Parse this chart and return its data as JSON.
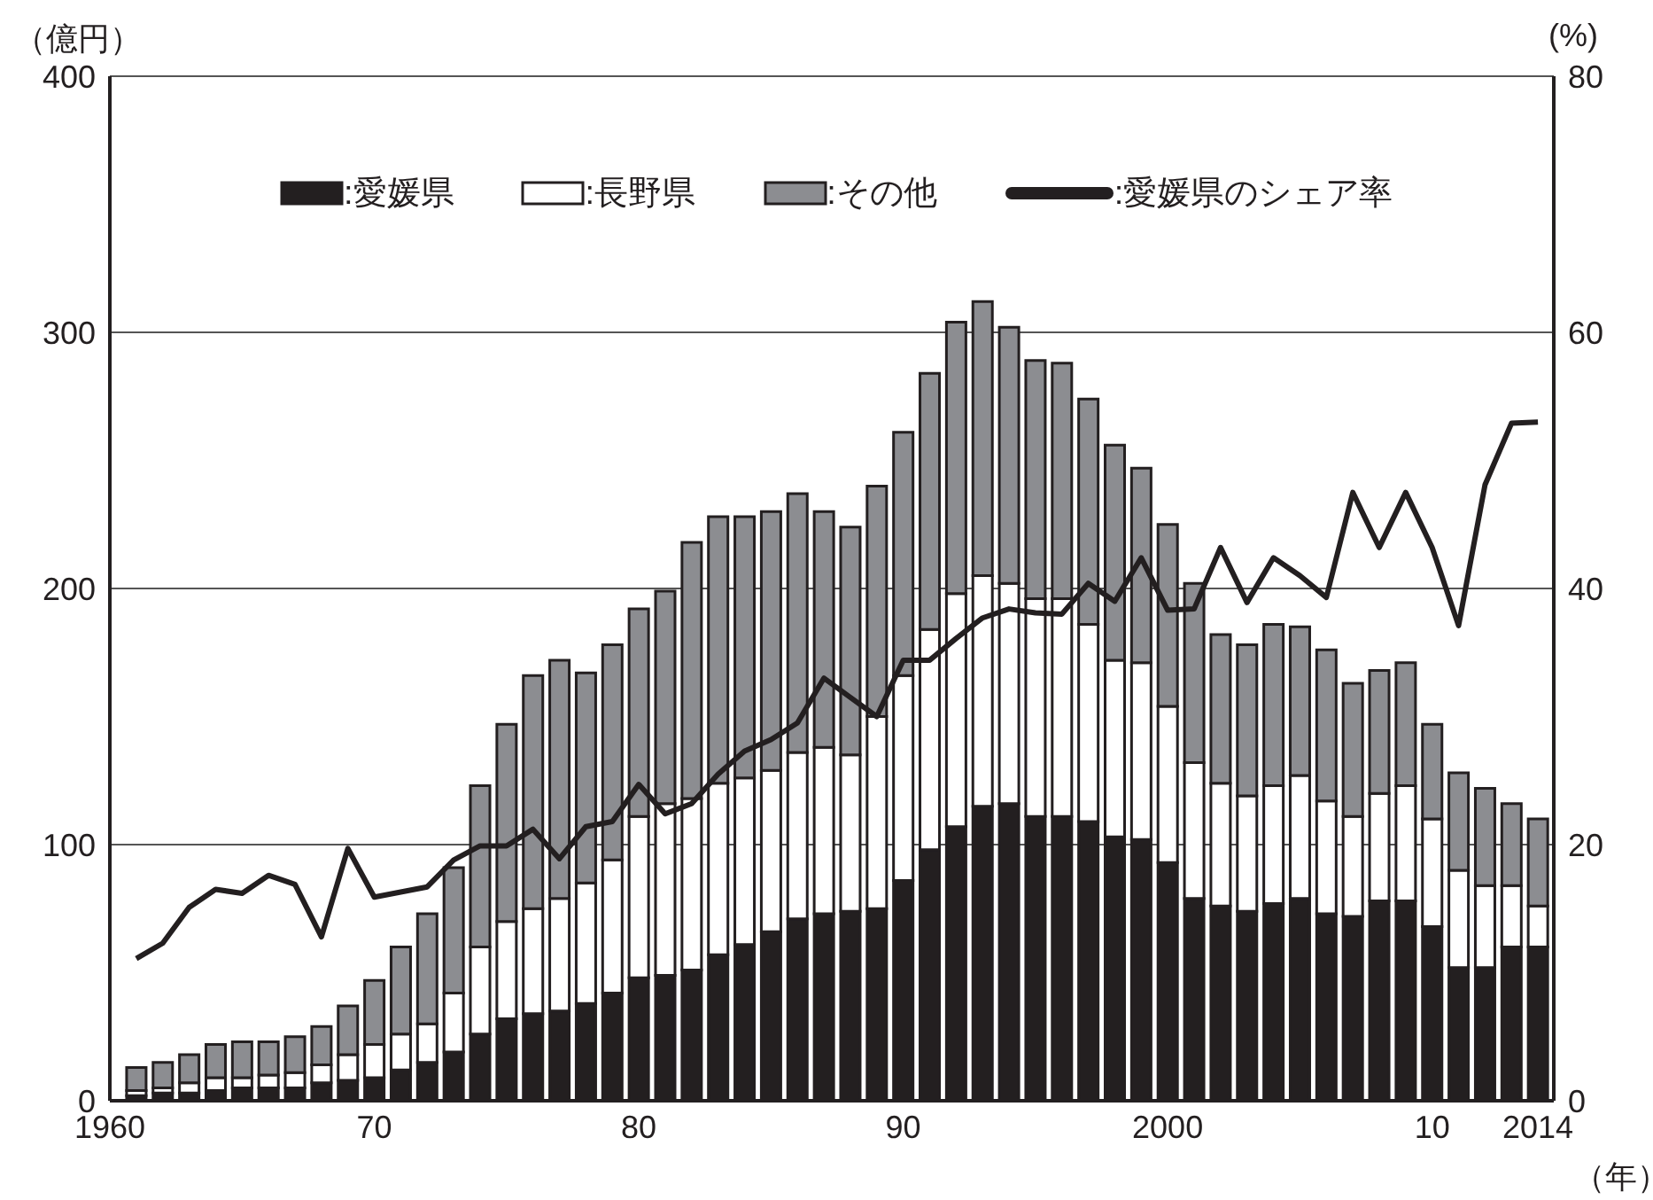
{
  "chart_data": {
    "type": "bar",
    "xlabel": "（年）",
    "ylabel": "（億円）",
    "y2label": "(%)",
    "stacked": true,
    "grid": "y",
    "legend": "top",
    "x": [
      1961,
      1962,
      1963,
      1964,
      1965,
      1966,
      1967,
      1968,
      1969,
      1970,
      1971,
      1972,
      1973,
      1974,
      1975,
      1976,
      1977,
      1978,
      1979,
      1980,
      1981,
      1982,
      1983,
      1984,
      1985,
      1986,
      1987,
      1988,
      1989,
      1990,
      1991,
      1992,
      1993,
      1994,
      1995,
      1996,
      1997,
      1998,
      1999,
      2000,
      2001,
      2002,
      2003,
      2004,
      2005,
      2006,
      2007,
      2008,
      2009,
      2010,
      2011,
      2012,
      2013,
      2014
    ],
    "xlim": [
      1960,
      2014.6
    ],
    "xticks": [
      1960,
      {
        "value": 1970,
        "label": "70"
      },
      {
        "value": 1980,
        "label": "80"
      },
      {
        "value": 1990,
        "label": "90"
      },
      2000,
      {
        "value": 2010,
        "label": "10"
      },
      2014
    ],
    "ylim": [
      0,
      400
    ],
    "yticks": [
      0,
      100,
      200,
      300,
      400
    ],
    "y2lim": [
      0,
      80
    ],
    "y2ticks": [
      0,
      20,
      40,
      60,
      80
    ],
    "series": [
      {
        "name": ":愛媛県",
        "color": "#231f20",
        "values": [
          2,
          3,
          3,
          4,
          5,
          5,
          5,
          7,
          8,
          9,
          12,
          15,
          19,
          26,
          32,
          34,
          35,
          38,
          42,
          48,
          49,
          51,
          57,
          61,
          66,
          71,
          73,
          74,
          75,
          86,
          98,
          107,
          115,
          116,
          111,
          111,
          109,
          103,
          102,
          93,
          79,
          76,
          74,
          77,
          79,
          73,
          72,
          78,
          78,
          68,
          52,
          52,
          60,
          60
        ]
      },
      {
        "name": ":長野県",
        "color": "#ffffff",
        "values": [
          2,
          2,
          4,
          5,
          4,
          5,
          6,
          7,
          10,
          13,
          14,
          15,
          23,
          34,
          38,
          41,
          44,
          47,
          52,
          63,
          67,
          67,
          67,
          65,
          63,
          65,
          65,
          61,
          75,
          80,
          86,
          91,
          90,
          86,
          85,
          85,
          77,
          69,
          69,
          61,
          53,
          48,
          45,
          46,
          48,
          44,
          39,
          42,
          45,
          42,
          38,
          32,
          24,
          16
        ]
      },
      {
        "name": ":その他",
        "color": "#8c8d91",
        "values": [
          9,
          10,
          11,
          13,
          14,
          13,
          14,
          15,
          19,
          25,
          34,
          43,
          49,
          63,
          77,
          91,
          93,
          82,
          84,
          81,
          83,
          100,
          104,
          102,
          101,
          101,
          92,
          89,
          90,
          95,
          100,
          106,
          107,
          100,
          93,
          92,
          88,
          84,
          76,
          71,
          70,
          58,
          59,
          63,
          58,
          59,
          52,
          48,
          48,
          37,
          38,
          38,
          32,
          34
        ]
      },
      {
        "name": ":愛媛県のシェア率",
        "type": "line",
        "axis": "y2",
        "color": "#231f20",
        "values": [
          11.1,
          12.3,
          15.1,
          16.5,
          16.2,
          17.6,
          16.9,
          12.8,
          19.7,
          15.9,
          16.3,
          16.7,
          18.8,
          19.9,
          19.9,
          21.2,
          18.9,
          21.4,
          21.8,
          24.7,
          22.4,
          23.2,
          25.5,
          27.3,
          28.2,
          29.5,
          33.0,
          31.5,
          30.0,
          34.4,
          34.4,
          36.1,
          37.7,
          38.4,
          38.1,
          38.0,
          40.4,
          39.0,
          42.4,
          38.3,
          38.4,
          43.2,
          38.9,
          42.4,
          41.0,
          39.3,
          47.5,
          43.2,
          47.5,
          43.2,
          37.1,
          48.1,
          52.9,
          53.0
        ]
      }
    ]
  }
}
